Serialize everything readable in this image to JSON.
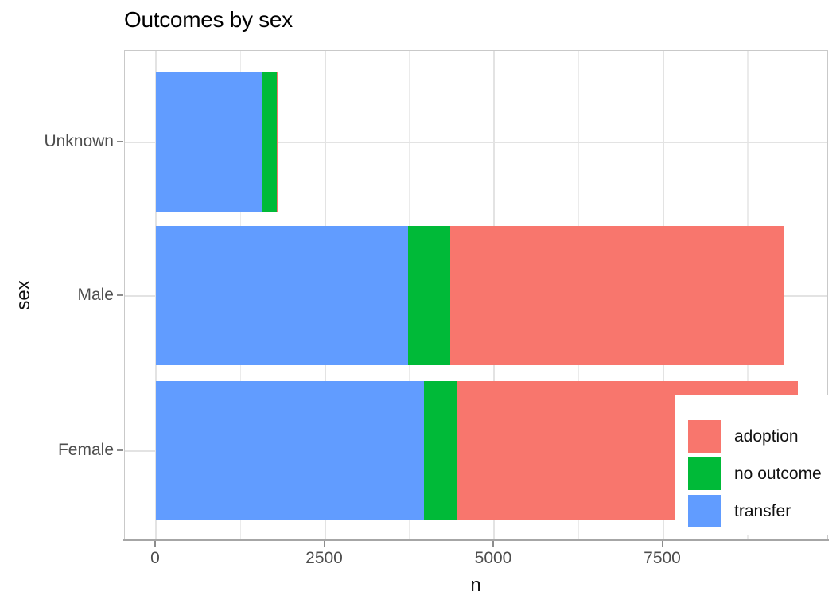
{
  "title": "Outcomes by sex",
  "chart_data": {
    "type": "bar",
    "orientation": "horizontal",
    "stacked": true,
    "title": "Outcomes by sex",
    "xlabel": "n",
    "ylabel": "sex",
    "categories": [
      "Unknown",
      "Male",
      "Female"
    ],
    "series": [
      {
        "name": "transfer",
        "color": "#619CFF",
        "values": [
          1575,
          3725,
          3970
        ]
      },
      {
        "name": "no outcome",
        "color": "#00BA38",
        "values": [
          210,
          625,
          475
        ]
      },
      {
        "name": "adoption",
        "color": "#F8766D",
        "values": [
          20,
          4935,
          5045
        ]
      }
    ],
    "totals": [
      1805,
      9285,
      9490
    ],
    "x_ticks": [
      0,
      2500,
      5000,
      7500
    ],
    "x_tick_labels": [
      "0",
      "2500",
      "5000",
      "7500"
    ],
    "x_minor_ticks": [
      1250,
      3750,
      6250,
      8750
    ],
    "xlim": [
      -459,
      9953
    ],
    "grid": true,
    "legend": {
      "position": "inside-right",
      "entries": [
        {
          "label": "adoption",
          "color": "#F8766D"
        },
        {
          "label": "no outcome",
          "color": "#00BA38"
        },
        {
          "label": "transfer",
          "color": "#619CFF"
        }
      ]
    }
  },
  "colors": {
    "background": "#ffffff",
    "panel_border": "#c9c9c9",
    "grid_major": "#e3e3e3",
    "grid_minor": "#ebebeb",
    "axis_line": "#a6a6a6",
    "tick_text": "#4d4d4d",
    "title_text": "#000000"
  }
}
